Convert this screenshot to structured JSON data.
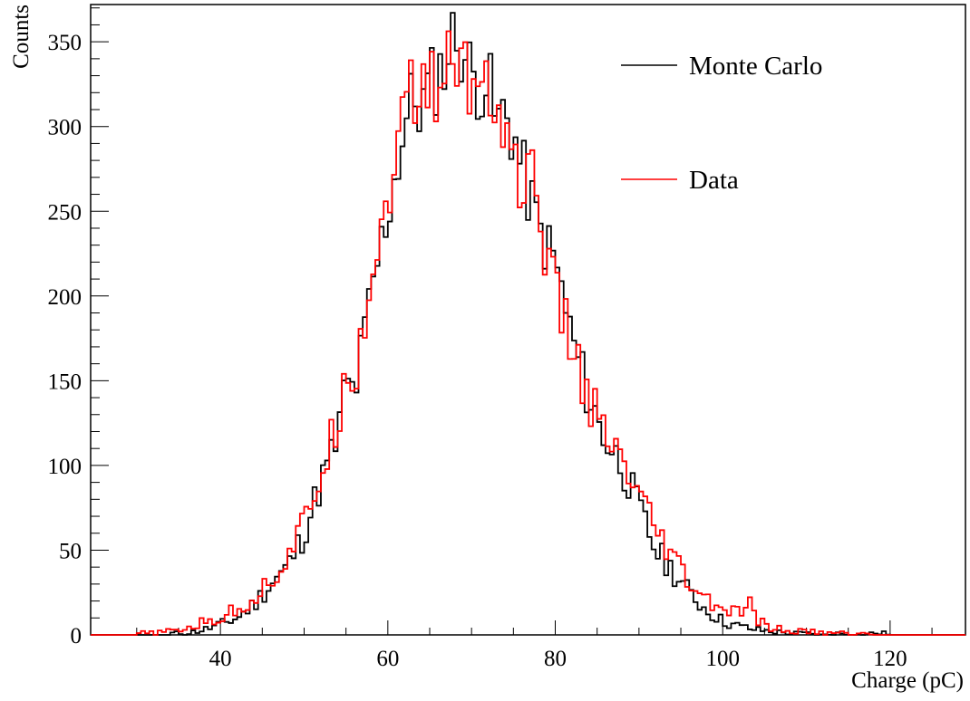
{
  "chart_data": {
    "type": "histogram",
    "title": "",
    "xlabel": "Charge (pC)",
    "ylabel": "Counts",
    "xlim": [
      24.5,
      129
    ],
    "ylim": [
      0,
      372
    ],
    "x_ticks": [
      40,
      60,
      80,
      100,
      120
    ],
    "y_ticks": [
      0,
      50,
      100,
      150,
      200,
      250,
      300,
      350
    ],
    "grid": false,
    "legend_position": "top-right",
    "bin_width": 0.5,
    "series": [
      {
        "name": "Monte Carlo",
        "color": "#000000",
        "x": [
          36,
          38,
          40,
          42,
          44,
          46,
          48,
          50,
          52,
          54,
          55,
          56,
          58,
          60,
          62,
          63,
          64,
          65,
          66,
          67,
          68,
          69,
          70,
          71,
          72,
          73,
          74,
          75,
          76,
          78,
          80,
          82,
          84,
          86,
          88,
          90,
          92,
          94,
          96,
          98,
          100,
          102,
          104,
          106,
          108,
          110,
          112,
          114,
          116,
          118
        ],
        "y": [
          1,
          3,
          6,
          10,
          18,
          30,
          40,
          60,
          90,
          115,
          150,
          142,
          200,
          250,
          300,
          318,
          310,
          325,
          330,
          340,
          355,
          345,
          330,
          325,
          328,
          300,
          310,
          295,
          275,
          240,
          220,
          175,
          140,
          115,
          100,
          75,
          50,
          38,
          25,
          15,
          8,
          5,
          3,
          2,
          1,
          1,
          0,
          1,
          0,
          1
        ]
      },
      {
        "name": "Data",
        "color": "#ff0000",
        "x": [
          32,
          34,
          36,
          38,
          40,
          42,
          44,
          46,
          48,
          50,
          52,
          54,
          55,
          56,
          58,
          60,
          61,
          62,
          63,
          64,
          65,
          66,
          67,
          68,
          69,
          70,
          71,
          72,
          73,
          74,
          75,
          76,
          77,
          78,
          80,
          82,
          84,
          86,
          88,
          90,
          92,
          94,
          96,
          98,
          100,
          102,
          103,
          104,
          106,
          108,
          110,
          112,
          114,
          116,
          118
        ],
        "y": [
          1,
          2,
          4,
          7,
          10,
          15,
          22,
          32,
          45,
          65,
          95,
          125,
          165,
          150,
          210,
          260,
          290,
          305,
          325,
          310,
          332,
          315,
          340,
          330,
          345,
          315,
          330,
          335,
          300,
          310,
          280,
          260,
          275,
          250,
          200,
          170,
          140,
          115,
          100,
          80,
          60,
          45,
          30,
          20,
          15,
          12,
          20,
          8,
          4,
          2,
          2,
          1,
          1,
          1,
          0
        ]
      }
    ]
  }
}
